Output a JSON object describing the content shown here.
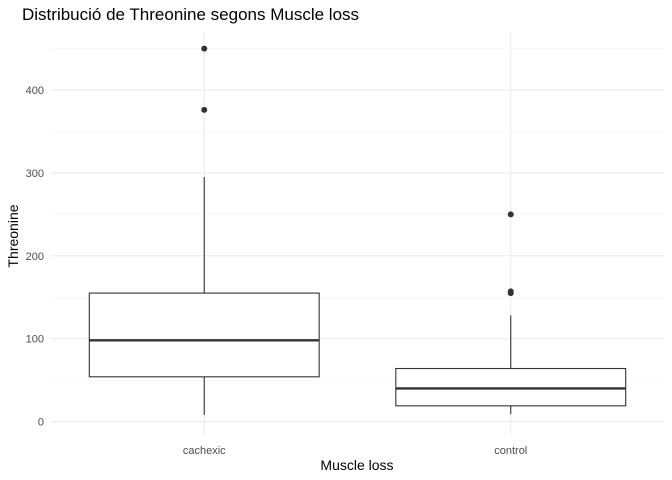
{
  "chart_data": {
    "type": "boxplot",
    "title": "Distribució de Threonine segons Muscle loss",
    "xlabel": "Muscle loss",
    "ylabel": "Threonine",
    "categories": [
      "cachexic",
      "control"
    ],
    "ylim": [
      -15,
      470
    ],
    "y_ticks": [
      0,
      100,
      200,
      300,
      400
    ],
    "y_minor_ticks": [
      50,
      150,
      250,
      350,
      450
    ],
    "grid": true,
    "legend": "none",
    "boxes": [
      {
        "category": "cachexic",
        "whisker_low": 8,
        "q1": 54,
        "median": 98,
        "q3": 155,
        "whisker_high": 295,
        "outliers": [
          376,
          450
        ]
      },
      {
        "category": "control",
        "whisker_low": 9,
        "q1": 19,
        "median": 40,
        "q3": 64,
        "whisker_high": 128,
        "outliers": [
          155,
          157,
          250
        ]
      }
    ],
    "colors": {
      "box_stroke": "#333333",
      "box_fill": "#ffffff",
      "grid": "#ebebeb"
    }
  }
}
